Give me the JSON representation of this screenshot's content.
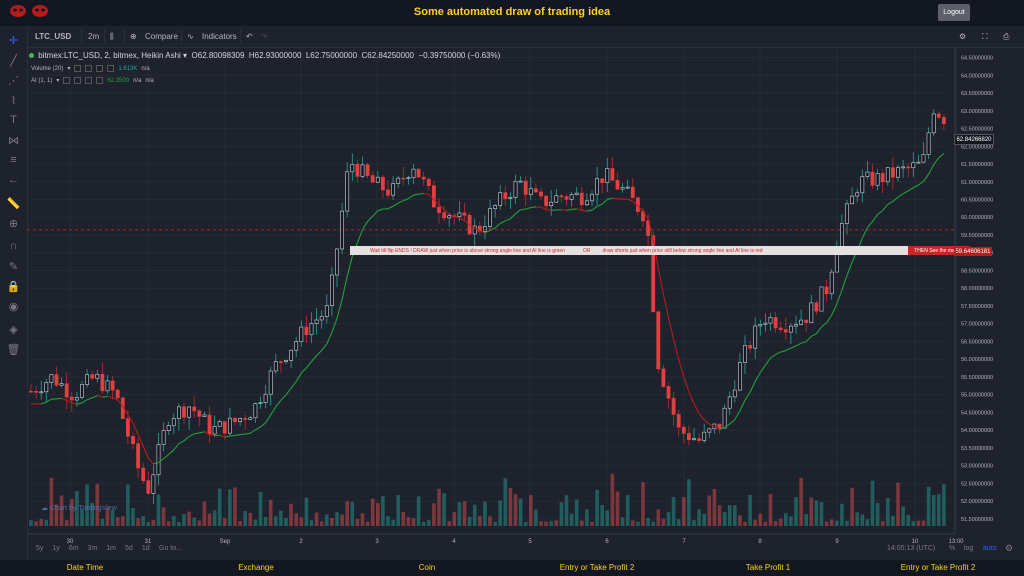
{
  "app": {
    "title": "Some automated draw of trading idea",
    "logout_label": "Logout"
  },
  "toolbar": {
    "symbol": "LTC_USD",
    "interval": "2m",
    "compare_label": "Compare",
    "indicators_label": "Indicators"
  },
  "legend": {
    "title": "bitmex:LTC_USD, 2, bitmex, Heikin Ashi",
    "open": "O62.80098309",
    "high": "H62.93000000",
    "low": "L62.75000000",
    "close": "C62.84250000",
    "change": "−0.39750000 (−0.63%)",
    "volume_label": "Volume (20)",
    "volume_value": "1.613K",
    "volume_na": "n/a",
    "ai_label": "AI (1, 1)",
    "ai_value": "62.3500",
    "ai_na1": "n/a",
    "ai_na2": "n/a"
  },
  "annotation": {
    "part1": "Wait till flip ENDS  !   DRAW just when  price is above strong angle line and AI line is green",
    "part2": "OR",
    "part3": "draw shorts just when price still below strong angle line and AI line is red",
    "part4": "THEN See the magic!!",
    "price_label": "59.64606181"
  },
  "last_price_label": "62.84266820",
  "watermark": "Chart by TradingView",
  "colors": {
    "up": "#26a69a",
    "down": "#ef5350",
    "ai_green": "#1fa23a",
    "ai_red": "#b71c1c",
    "accent": "#ffd21f"
  },
  "chart_data": {
    "type": "candlestick",
    "symbol": "LTC_USD",
    "y_ticks": [
      "64.50000000",
      "64.00000000",
      "63.50000000",
      "63.00000000",
      "62.50000000",
      "62.00000000",
      "61.50000000",
      "61.00000000",
      "60.50000000",
      "60.00000000",
      "59.50000000",
      "59.00000000",
      "58.50000000",
      "58.00000000",
      "57.50000000",
      "57.00000000",
      "56.50000000",
      "56.00000000",
      "55.50000000",
      "55.00000000",
      "54.50000000",
      "54.00000000",
      "53.50000000",
      "53.00000000",
      "52.50000000",
      "52.00000000",
      "51.50000000"
    ],
    "x_ticks": [
      "30",
      "31",
      "Sep",
      "2",
      "3",
      "4",
      "5",
      "6",
      "7",
      "8",
      "9",
      "10",
      "13:00"
    ],
    "ylim": [
      51.3,
      64.6
    ],
    "close_path": [
      [
        0,
        55.1
      ],
      [
        2,
        55.5
      ],
      [
        4,
        55.0
      ],
      [
        6,
        55.5
      ],
      [
        8,
        55.0
      ],
      [
        10,
        53.0
      ],
      [
        11,
        52.3
      ],
      [
        13,
        54.4
      ],
      [
        15,
        54.7
      ],
      [
        17,
        54.0
      ],
      [
        19,
        54.2
      ],
      [
        21,
        54.6
      ],
      [
        23,
        55.8
      ],
      [
        26,
        56.9
      ],
      [
        28,
        57.4
      ],
      [
        29,
        59.5
      ],
      [
        30,
        61.6
      ],
      [
        32,
        61.0
      ],
      [
        34,
        60.7
      ],
      [
        36,
        61.5
      ],
      [
        38,
        60.4
      ],
      [
        40,
        60.0
      ],
      [
        42,
        59.6
      ],
      [
        44,
        60.4
      ],
      [
        46,
        61.0
      ],
      [
        48,
        60.4
      ],
      [
        50,
        60.6
      ],
      [
        52,
        60.6
      ],
      [
        54,
        61.2
      ],
      [
        56,
        60.7
      ],
      [
        58,
        60.0
      ],
      [
        59,
        56.0
      ],
      [
        61,
        54.0
      ],
      [
        63,
        53.7
      ],
      [
        65,
        54.2
      ],
      [
        67,
        56.0
      ],
      [
        69,
        57.2
      ],
      [
        71,
        57.0
      ],
      [
        73,
        57.2
      ],
      [
        75,
        58.0
      ],
      [
        76,
        59.5
      ],
      [
        78,
        61.0
      ],
      [
        80,
        61.1
      ],
      [
        82,
        61.3
      ],
      [
        84,
        61.5
      ],
      [
        85,
        63.1
      ],
      [
        86,
        62.8
      ]
    ],
    "volume_max": 2.3
  },
  "bottom": {
    "ranges": [
      "5y",
      "1y",
      "6m",
      "3m",
      "1m",
      "5d",
      "1d"
    ],
    "goto_label": "Go to...",
    "time": "14:05:13 (UTC)",
    "pct": "%",
    "log": "log",
    "auto": "auto"
  },
  "footer": {
    "items": [
      "Date Time",
      "Exchange",
      "Coin",
      "Entry or Take Profit 2",
      "Take Profit 1",
      "Entry or Take Profit 2"
    ]
  }
}
